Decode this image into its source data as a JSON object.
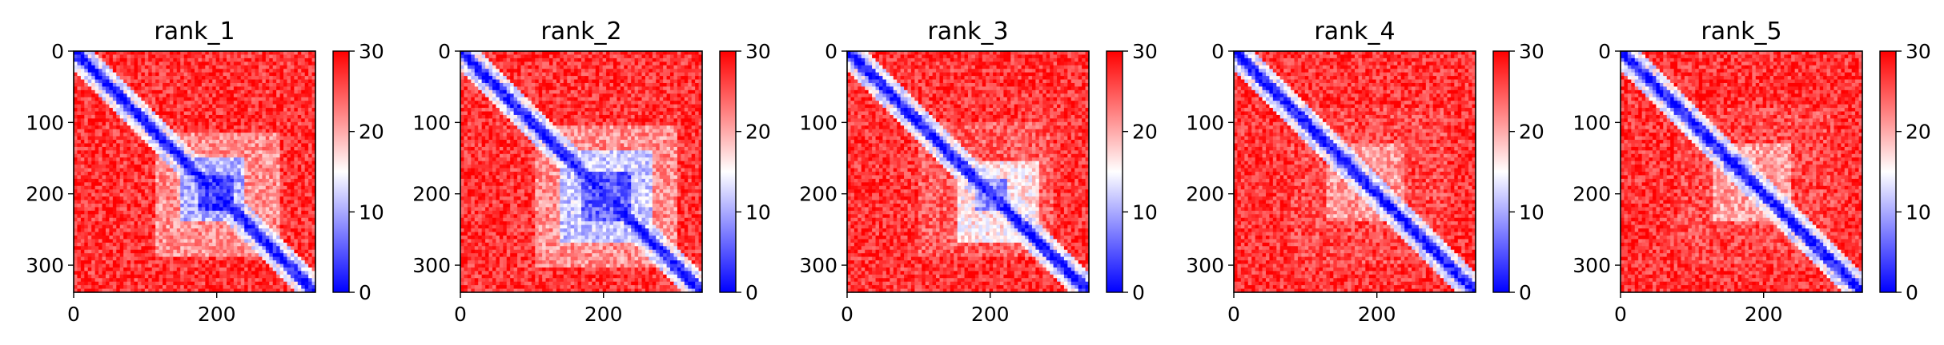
{
  "chart_data": [
    {
      "type": "heatmap",
      "title": "rank_1",
      "x_ticks": [
        "0",
        "200"
      ],
      "y_ticks": [
        "0",
        "100",
        "200",
        "300"
      ],
      "colorbar_ticks": [
        "0",
        "10",
        "20",
        "30"
      ],
      "value_range": [
        0,
        30
      ],
      "matrix_size": 338,
      "colormap": [
        "#0000ff",
        "#ffffff",
        "#ff0000"
      ],
      "low_error_blocks": [
        {
          "from": 115,
          "to": 290,
          "level": 0.72
        },
        {
          "from": 150,
          "to": 240,
          "level": 0.35
        },
        {
          "from": 175,
          "to": 225,
          "level": 0.12
        }
      ]
    },
    {
      "type": "heatmap",
      "title": "rank_2",
      "x_ticks": [
        "0",
        "200"
      ],
      "y_ticks": [
        "0",
        "100",
        "200",
        "300"
      ],
      "colorbar_ticks": [
        "0",
        "10",
        "20",
        "30"
      ],
      "value_range": [
        0,
        30
      ],
      "matrix_size": 338,
      "colormap": [
        "#0000ff",
        "#ffffff",
        "#ff0000"
      ],
      "low_error_blocks": [
        {
          "from": 105,
          "to": 305,
          "level": 0.72
        },
        {
          "from": 140,
          "to": 270,
          "level": 0.4
        },
        {
          "from": 170,
          "to": 240,
          "level": 0.18
        }
      ]
    },
    {
      "type": "heatmap",
      "title": "rank_3",
      "x_ticks": [
        "0",
        "200"
      ],
      "y_ticks": [
        "0",
        "100",
        "200",
        "300"
      ],
      "colorbar_ticks": [
        "0",
        "10",
        "20",
        "30"
      ],
      "value_range": [
        0,
        30
      ],
      "matrix_size": 338,
      "colormap": [
        "#0000ff",
        "#ffffff",
        "#ff0000"
      ],
      "low_error_blocks": [
        {
          "from": 100,
          "to": 290,
          "level": 0.82
        },
        {
          "from": 155,
          "to": 270,
          "level": 0.55
        },
        {
          "from": 180,
          "to": 225,
          "level": 0.3
        }
      ]
    },
    {
      "type": "heatmap",
      "title": "rank_4",
      "x_ticks": [
        "0",
        "200"
      ],
      "y_ticks": [
        "0",
        "100",
        "200",
        "300"
      ],
      "colorbar_ticks": [
        "0",
        "10",
        "20",
        "30"
      ],
      "value_range": [
        0,
        30
      ],
      "matrix_size": 338,
      "colormap": [
        "#0000ff",
        "#ffffff",
        "#ff0000"
      ],
      "low_error_blocks": [
        {
          "from": 80,
          "to": 300,
          "level": 0.86
        },
        {
          "from": 130,
          "to": 240,
          "level": 0.7
        },
        {
          "from": 145,
          "to": 165,
          "level": 0.25
        }
      ]
    },
    {
      "type": "heatmap",
      "title": "rank_5",
      "x_ticks": [
        "0",
        "200"
      ],
      "y_ticks": [
        "0",
        "100",
        "200",
        "300"
      ],
      "colorbar_ticks": [
        "0",
        "10",
        "20",
        "30"
      ],
      "value_range": [
        0,
        30
      ],
      "matrix_size": 338,
      "colormap": [
        "#0000ff",
        "#ffffff",
        "#ff0000"
      ],
      "low_error_blocks": [
        {
          "from": 80,
          "to": 300,
          "level": 0.86
        },
        {
          "from": 130,
          "to": 240,
          "level": 0.68
        },
        {
          "from": 145,
          "to": 170,
          "level": 0.22
        }
      ]
    }
  ]
}
